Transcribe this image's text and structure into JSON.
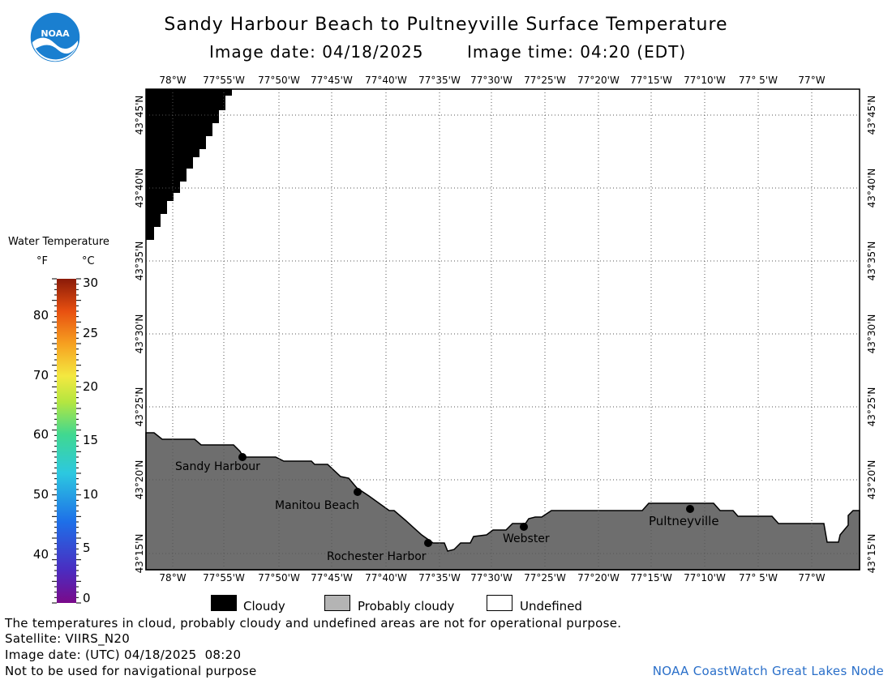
{
  "header": {
    "title": "Sandy Harbour Beach to Pultneyville Surface Temperature",
    "image_date": "Image date: 04/18/2025",
    "image_time": "Image time: 04:20 (EDT)"
  },
  "logo": {
    "text": "NOAA",
    "color": "#1a7fd0"
  },
  "map": {
    "lon_labels": [
      "78°W",
      "77°55'W",
      "77°50'W",
      "77°45'W",
      "77°40'W",
      "77°35'W",
      "77°30'W",
      "77°25'W",
      "77°20'W",
      "77°15'W",
      "77°10'W",
      "77° 5'W",
      "77°W"
    ],
    "lat_labels": [
      "43°45'N",
      "43°40'N",
      "43°35'N",
      "43°30'N",
      "43°25'N",
      "43°20'N",
      "43°15'N"
    ],
    "places": [
      {
        "name": "Sandy Harbour"
      },
      {
        "name": "Manitou Beach"
      },
      {
        "name": "Rochester Harbor"
      },
      {
        "name": "Webster"
      },
      {
        "name": "Pultneyville"
      }
    ],
    "colors": {
      "cloud": "#000000",
      "land": "#6e6e6e",
      "water": "#ffffff"
    }
  },
  "colorbar": {
    "title": "Water Temperature",
    "unit_f": "°F",
    "unit_c": "°C",
    "f_labels": [
      "80",
      "70",
      "60",
      "50",
      "40"
    ],
    "c_labels": [
      "30",
      "25",
      "20",
      "15",
      "10",
      "5",
      "0"
    ]
  },
  "legend": {
    "items": [
      {
        "label": "Cloudy",
        "color": "#000000"
      },
      {
        "label": "Probably cloudy",
        "color": "#b4b4b4"
      },
      {
        "label": "Undefined",
        "color": "#ffffff"
      }
    ]
  },
  "footer": {
    "note": "The temperatures in cloud, probably cloudy and undefined areas are not for operational purpose.",
    "satellite": "Satellite: VIIRS_N20",
    "utc_date": "Image date: (UTC) 04/18/2025  08:20",
    "nav_warning": "Not to be used for navigational purpose",
    "credit": "NOAA CoastWatch Great Lakes Node",
    "credit_color": "#2a6fc9"
  }
}
